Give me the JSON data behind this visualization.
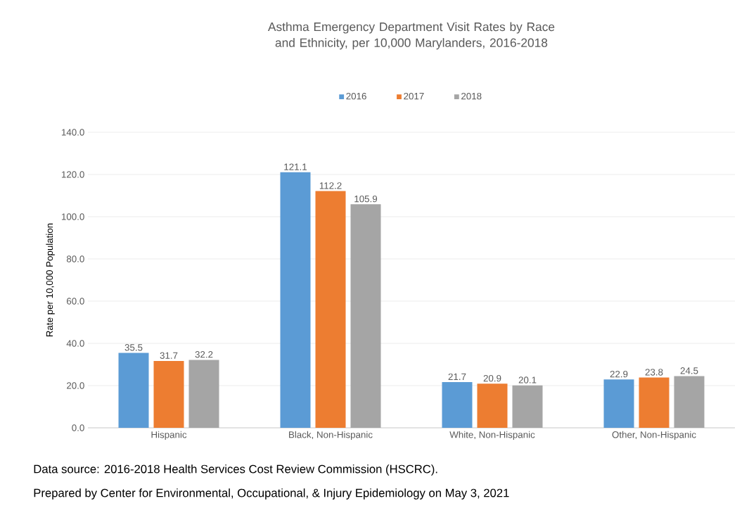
{
  "chart_data": {
    "type": "bar",
    "title": "Asthma Emergency Department Visit Rates by Race and Ethnicity, per 10,000 Marylanders, 2016-2018",
    "ylabel": "Rate per 10,000 Population",
    "categories": [
      "Hispanic",
      "Black, Non-Hispanic",
      "White, Non-Hispanic",
      "Other, Non-Hispanic"
    ],
    "series": [
      {
        "name": "2016",
        "color": "#5b9bd5",
        "values": [
          35.5,
          121.1,
          21.7,
          22.9
        ],
        "value_labels": [
          "35.5",
          "121.1",
          "21.7",
          "22.9"
        ]
      },
      {
        "name": "2017",
        "color": "#ed7d31",
        "values": [
          31.7,
          112.2,
          20.9,
          23.8
        ],
        "value_labels": [
          "31.7",
          "112.2",
          "20.9",
          "23.8"
        ]
      },
      {
        "name": "2018",
        "color": "#a5a5a5",
        "values": [
          32.2,
          105.9,
          20.1,
          24.5
        ],
        "value_labels": [
          "32.2",
          "105.9",
          "20.1",
          "24.5"
        ]
      }
    ],
    "ylim": [
      0,
      140
    ],
    "yticks": [
      {
        "value": 0,
        "label": "0.0"
      },
      {
        "value": 20,
        "label": "20.0"
      },
      {
        "value": 40,
        "label": "40.0"
      },
      {
        "value": 60,
        "label": "60.0"
      },
      {
        "value": 80,
        "label": "80.0"
      },
      {
        "value": 100,
        "label": "100.0"
      },
      {
        "value": 120,
        "label": "120.0"
      },
      {
        "value": 140,
        "label": "140.0"
      }
    ],
    "grid": "y",
    "legend": "top",
    "annotations": [
      "Data source: 2016-2018 Health Services Cost Review Commission (HSCRC).",
      "Prepared by Center for Environmental, Occupational, & Injury Epidemiology on May 3, 2021"
    ]
  }
}
